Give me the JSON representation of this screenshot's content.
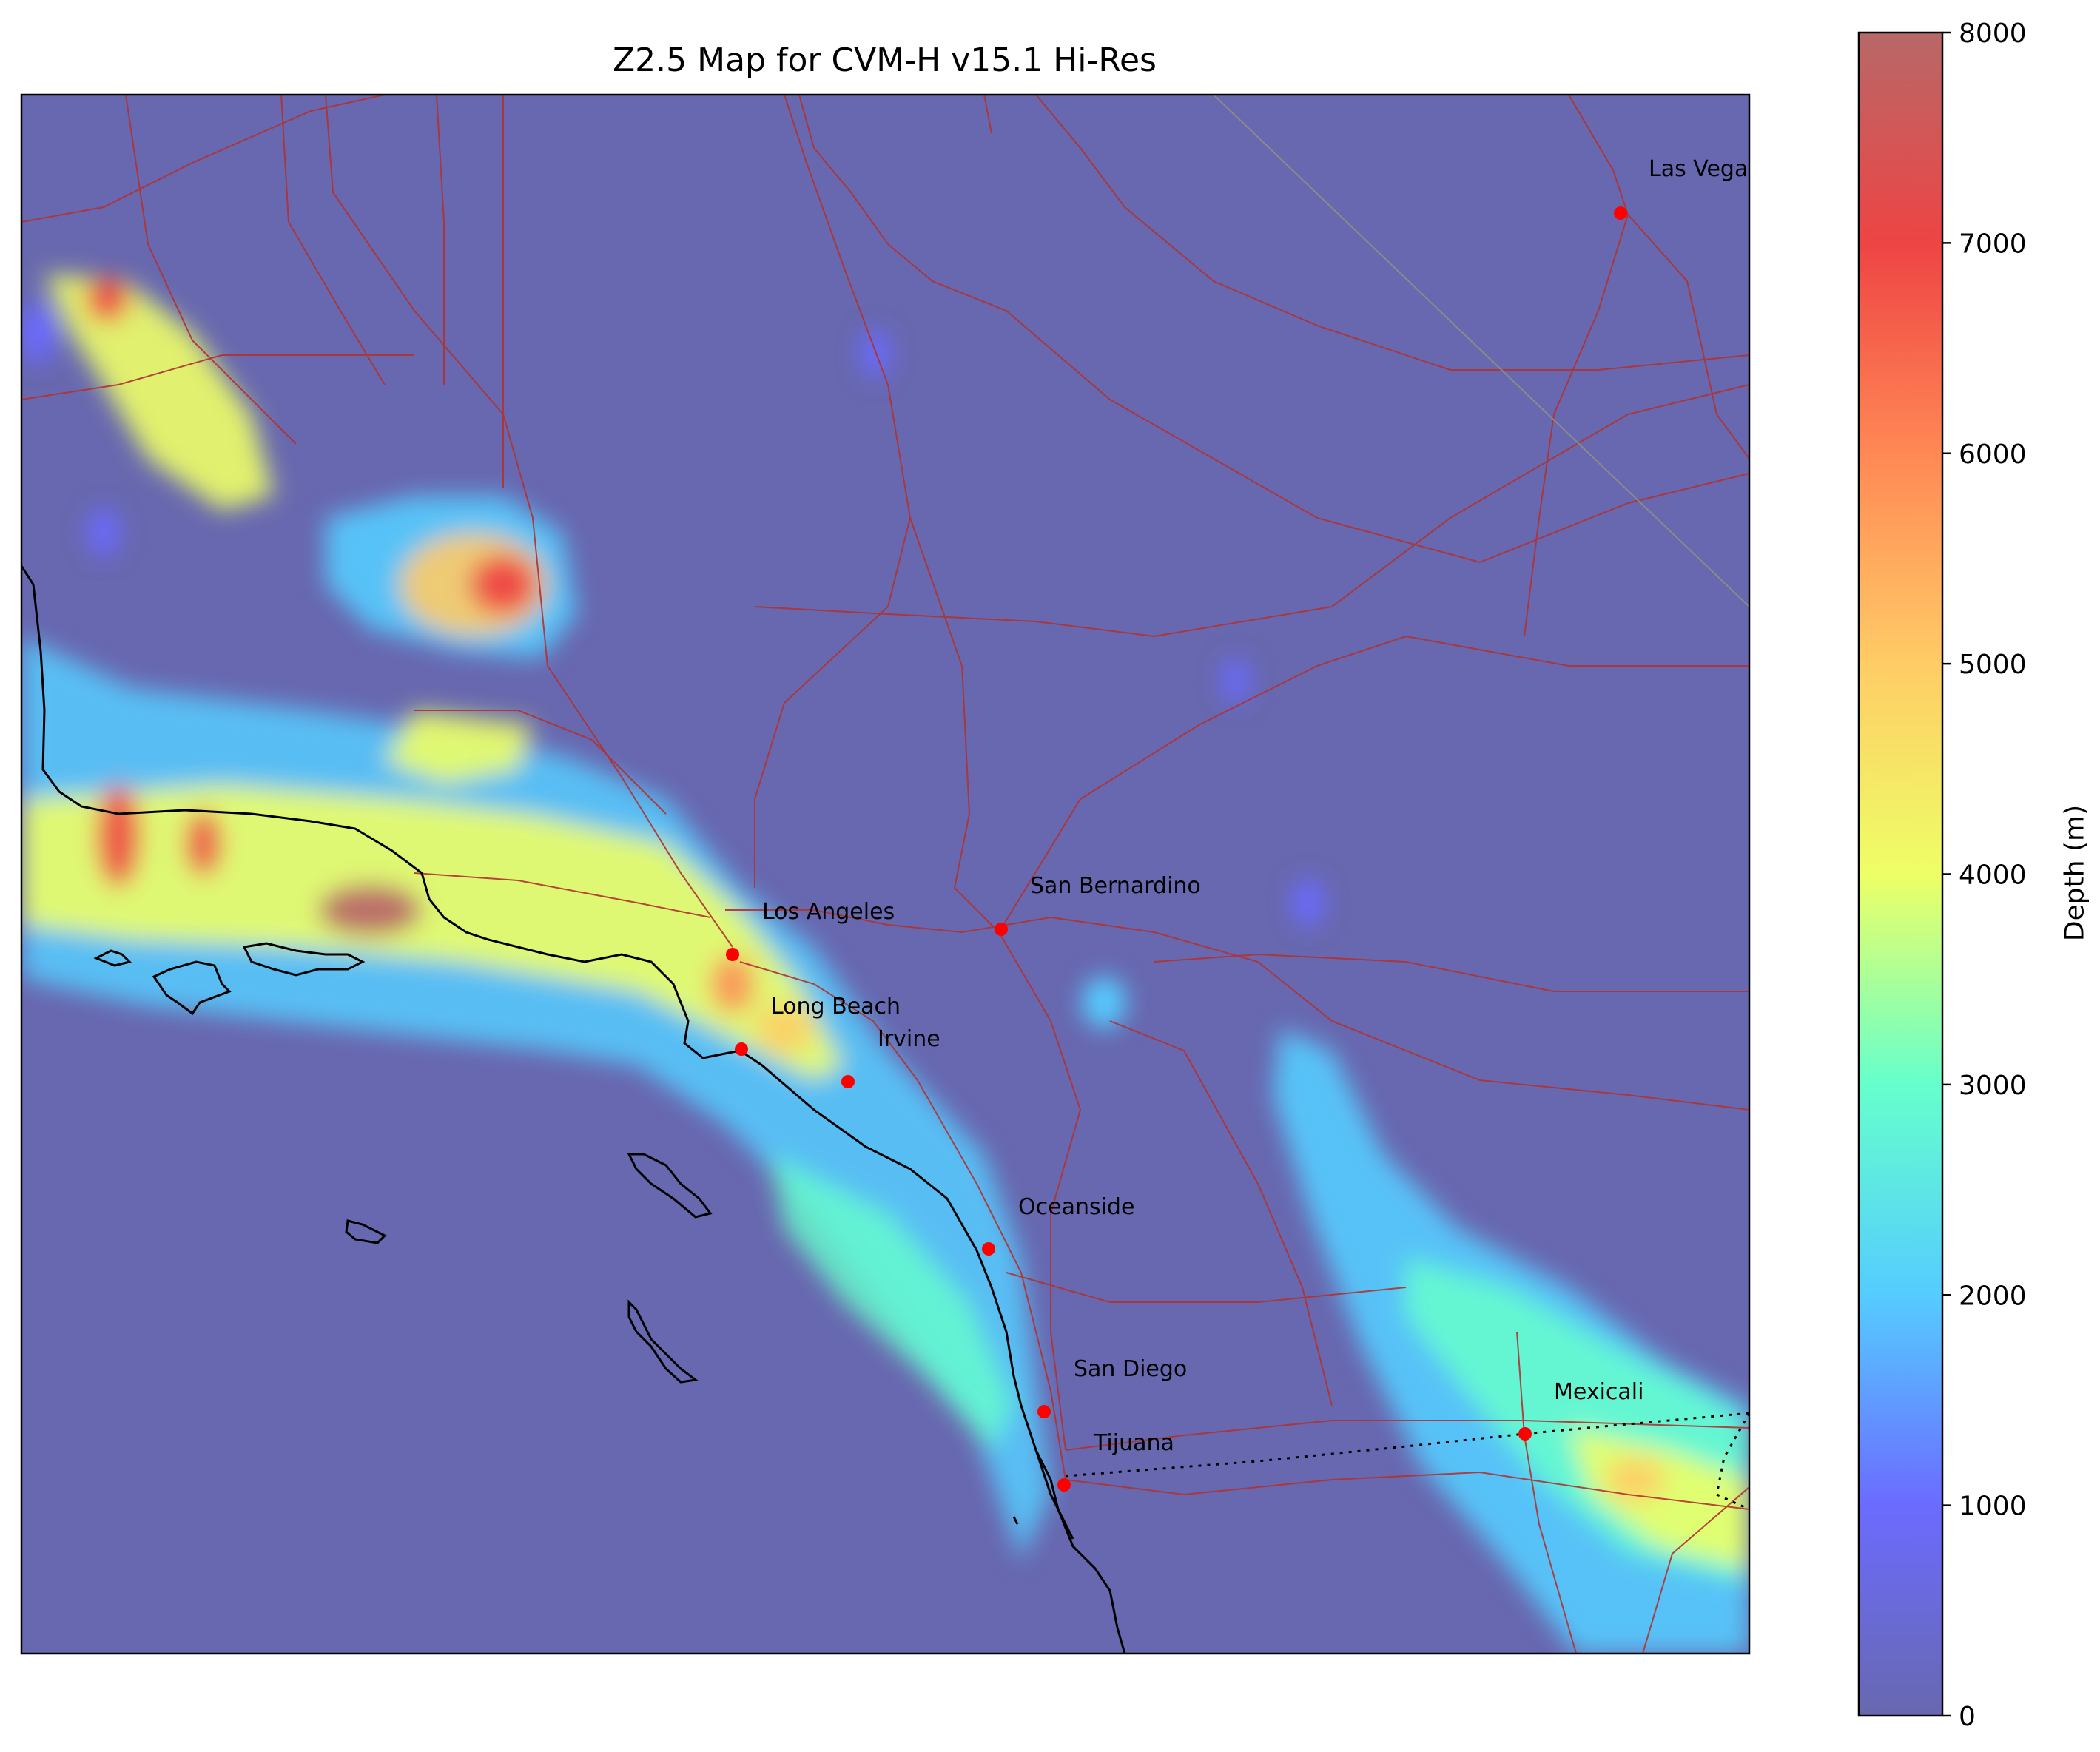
{
  "title": "Z2.5 Map for CVM-H v15.1 Hi-Res",
  "colorbar": {
    "label": "Depth (m)",
    "min": 0,
    "max": 8000,
    "ticks": [
      "0",
      "1000",
      "2000",
      "3000",
      "4000",
      "5000",
      "6000",
      "7000",
      "8000"
    ],
    "colors": [
      "#6868b0",
      "#6b6bff",
      "#55ccff",
      "#66ffcc",
      "#eeff66",
      "#ffcc66",
      "#ff8855",
      "#ee4444",
      "#b86868"
    ]
  },
  "cities": [
    {
      "name": "Las Vegas"
    },
    {
      "name": "San Bernardino"
    },
    {
      "name": "Los Angeles"
    },
    {
      "name": "Long Beach"
    },
    {
      "name": "Irvine"
    },
    {
      "name": "Oceanside"
    },
    {
      "name": "San Diego"
    },
    {
      "name": "Tijuana"
    },
    {
      "name": "Mexicali"
    }
  ],
  "colors": {
    "background": "#6868b0",
    "roads": "#b03232",
    "coast": "#000000",
    "city_marker": "#ff0000"
  }
}
